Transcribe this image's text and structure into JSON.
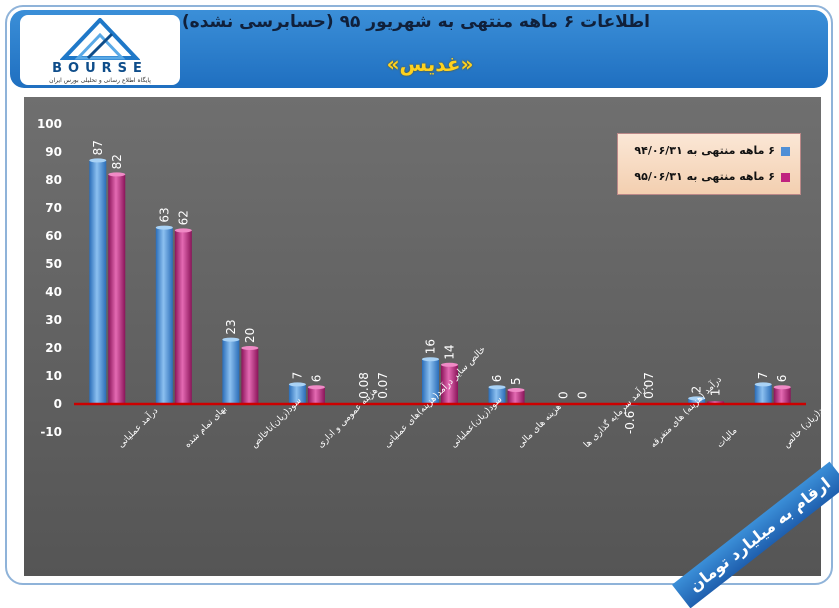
{
  "header": {
    "title": "اطلاعات ۶ ماهه منتهی به شهریور ۹۵ (حسابرسی نشده)",
    "company": "«غدیس»",
    "logo_text": "BOURSE",
    "logo_subtitle": "پایگاه اطلاع رسانی و تحلیلی بورس ایران"
  },
  "colors": {
    "series1": "#4f8fd6",
    "series2": "#c0237f",
    "zero_line": "#cc0000",
    "header": "#2a7ccd",
    "company_title": "#ffd21f"
  },
  "units_note": "ارقام به میلیارد تومان",
  "chart_data": {
    "type": "bar",
    "categories": [
      "درآمد عملیاتی",
      "بهای تمام شده",
      "سود(زیان)ناخالص",
      "هزینه عمومی و اداری",
      "خالص سایر درآمد(هزینه)های عملیاتی",
      "سود(زیان)عملیاتی",
      "هزینه های مالی",
      "درآمد سرمایه گذاری ها",
      "درآمد (هزینه) های متفرقه",
      "مالیات",
      "سود(زیان) خالص"
    ],
    "series": [
      {
        "name": "۶ ماهه منتهی به ۹۴/۰۶/۳۱",
        "values": [
          87,
          63,
          23,
          7,
          0.08,
          16,
          6,
          0,
          -0.6,
          2,
          7
        ],
        "labels": [
          "87",
          "63",
          "23",
          "7",
          "0.08",
          "16",
          "6",
          "0",
          "-0.6",
          "2",
          "7"
        ]
      },
      {
        "name": "۶ ماهه منتهی به ۹۵/۰۶/۳۱",
        "values": [
          82,
          62,
          20,
          6,
          0.07,
          14,
          5,
          0,
          0.07,
          1,
          6
        ],
        "labels": [
          "82",
          "62",
          "20",
          "6",
          "0.07",
          "14",
          "5",
          "0",
          "0.07",
          "1",
          "6"
        ]
      }
    ],
    "ylim": [
      -10,
      100
    ],
    "yticks": [
      "-10",
      "0",
      "10",
      "20",
      "30",
      "40",
      "50",
      "60",
      "70",
      "80",
      "90",
      "100"
    ],
    "grid": false,
    "legend_position": "top-right"
  }
}
